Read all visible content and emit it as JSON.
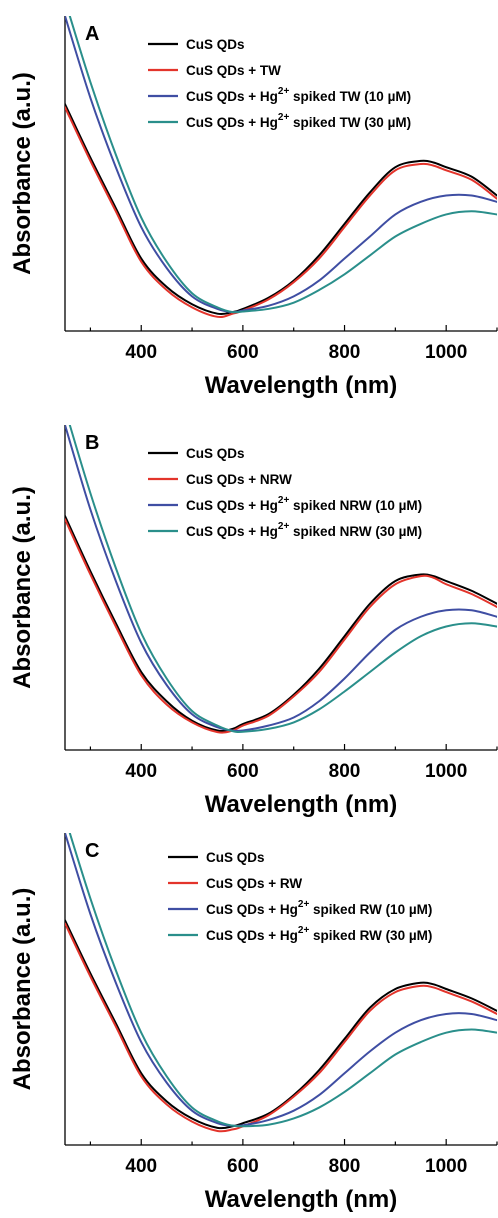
{
  "colors": {
    "black": "#000000",
    "red": "#e3342b",
    "blue": "#3f4ea3",
    "teal": "#2a8f8b"
  },
  "chart_data": [
    {
      "type": "line",
      "panel_label": "A",
      "xlabel": "Wavelength (nm)",
      "ylabel": "Absorbance (a.u.)",
      "xlim": [
        250,
        1100
      ],
      "ylim": [
        0,
        1
      ],
      "x_ticks": [
        400,
        600,
        800,
        1000
      ],
      "x_tick_labels": [
        "400",
        "600",
        "800",
        "1000"
      ],
      "y_ticks_labeled": false,
      "legend_placement": "top-center",
      "series": [
        {
          "name": "CuS QDs",
          "color": "#000000",
          "x": [
            250,
            300,
            350,
            400,
            450,
            500,
            550,
            580,
            600,
            650,
            700,
            750,
            800,
            850,
            900,
            950,
            975,
            1000,
            1050,
            1100
          ],
          "y": [
            0.72,
            0.55,
            0.39,
            0.23,
            0.14,
            0.085,
            0.055,
            0.06,
            0.07,
            0.105,
            0.16,
            0.24,
            0.34,
            0.44,
            0.52,
            0.54,
            0.535,
            0.52,
            0.49,
            0.43
          ]
        },
        {
          "name": "CuS QDs + TW",
          "color": "#e3342b",
          "x": [
            250,
            300,
            350,
            400,
            450,
            500,
            550,
            580,
            600,
            650,
            700,
            750,
            800,
            850,
            900,
            950,
            975,
            1000,
            1050,
            1100
          ],
          "y": [
            0.71,
            0.54,
            0.38,
            0.22,
            0.13,
            0.075,
            0.045,
            0.055,
            0.065,
            0.1,
            0.155,
            0.23,
            0.33,
            0.43,
            0.51,
            0.53,
            0.525,
            0.51,
            0.48,
            0.42
          ]
        },
        {
          "name": "CuS QDs + Hg2+ spiked TW (10 µM)",
          "color": "#3f4ea3",
          "x": [
            250,
            300,
            350,
            400,
            450,
            500,
            550,
            580,
            600,
            650,
            700,
            750,
            800,
            850,
            900,
            950,
            1000,
            1050,
            1100
          ],
          "y": [
            1.0,
            0.74,
            0.52,
            0.33,
            0.2,
            0.11,
            0.07,
            0.06,
            0.065,
            0.08,
            0.11,
            0.16,
            0.23,
            0.3,
            0.37,
            0.41,
            0.43,
            0.43,
            0.41
          ]
        },
        {
          "name": "CuS QDs + Hg2+ spiked TW (30 µM)",
          "color": "#2a8f8b",
          "x": [
            250,
            300,
            350,
            400,
            450,
            500,
            550,
            580,
            600,
            650,
            700,
            750,
            800,
            850,
            900,
            950,
            1000,
            1050,
            1100
          ],
          "y": [
            1.05,
            0.79,
            0.56,
            0.36,
            0.22,
            0.12,
            0.075,
            0.06,
            0.062,
            0.07,
            0.09,
            0.13,
            0.18,
            0.24,
            0.3,
            0.34,
            0.37,
            0.38,
            0.37
          ]
        }
      ],
      "legend": [
        {
          "pre": "CuS QDs",
          "sup": "",
          "post": "",
          "color": "#000000"
        },
        {
          "pre": "CuS QDs + TW",
          "sup": "",
          "post": "",
          "color": "#e3342b"
        },
        {
          "pre": "CuS QDs + Hg",
          "sup": "2+",
          "post": " spiked TW (10 µM)",
          "color": "#3f4ea3"
        },
        {
          "pre": "CuS QDs + Hg",
          "sup": "2+",
          "post": " spiked TW (30 µM)",
          "color": "#2a8f8b"
        }
      ]
    },
    {
      "type": "line",
      "panel_label": "B",
      "xlabel": "Wavelength (nm)",
      "ylabel": "Absorbance (a.u.)",
      "xlim": [
        250,
        1100
      ],
      "ylim": [
        0,
        1
      ],
      "x_ticks": [
        400,
        600,
        800,
        1000
      ],
      "x_tick_labels": [
        "400",
        "600",
        "800",
        "1000"
      ],
      "y_ticks_labeled": false,
      "legend_placement": "top-center",
      "series": [
        {
          "name": "CuS QDs",
          "color": "#000000",
          "x": [
            250,
            300,
            350,
            400,
            450,
            500,
            550,
            580,
            600,
            650,
            700,
            750,
            800,
            850,
            900,
            950,
            975,
            1000,
            1050,
            1100
          ],
          "y": [
            0.72,
            0.55,
            0.39,
            0.24,
            0.15,
            0.09,
            0.06,
            0.065,
            0.08,
            0.11,
            0.17,
            0.25,
            0.35,
            0.45,
            0.52,
            0.54,
            0.535,
            0.52,
            0.49,
            0.45
          ]
        },
        {
          "name": "CuS QDs + NRW",
          "color": "#e3342b",
          "x": [
            250,
            300,
            350,
            400,
            450,
            500,
            550,
            580,
            600,
            650,
            700,
            750,
            800,
            850,
            900,
            950,
            975,
            1000,
            1050,
            1100
          ],
          "y": [
            0.71,
            0.54,
            0.38,
            0.23,
            0.14,
            0.085,
            0.055,
            0.06,
            0.075,
            0.105,
            0.165,
            0.24,
            0.34,
            0.44,
            0.51,
            0.535,
            0.53,
            0.51,
            0.48,
            0.44
          ]
        },
        {
          "name": "CuS QDs + Hg2+ spiked NRW (10 µM)",
          "color": "#3f4ea3",
          "x": [
            250,
            300,
            350,
            400,
            450,
            500,
            550,
            580,
            600,
            650,
            700,
            750,
            800,
            850,
            900,
            950,
            1000,
            1050,
            1100
          ],
          "y": [
            1.0,
            0.74,
            0.52,
            0.33,
            0.2,
            0.11,
            0.07,
            0.06,
            0.06,
            0.075,
            0.1,
            0.15,
            0.22,
            0.3,
            0.37,
            0.41,
            0.43,
            0.43,
            0.41
          ]
        },
        {
          "name": "CuS QDs + Hg2+ spiked NRW (30 µM)",
          "color": "#2a8f8b",
          "x": [
            250,
            300,
            350,
            400,
            450,
            500,
            550,
            580,
            600,
            650,
            700,
            750,
            800,
            850,
            900,
            950,
            1000,
            1050,
            1100
          ],
          "y": [
            1.05,
            0.79,
            0.56,
            0.36,
            0.22,
            0.12,
            0.075,
            0.058,
            0.056,
            0.065,
            0.085,
            0.125,
            0.18,
            0.24,
            0.3,
            0.35,
            0.38,
            0.39,
            0.38
          ]
        }
      ],
      "legend": [
        {
          "pre": "CuS QDs",
          "sup": "",
          "post": "",
          "color": "#000000"
        },
        {
          "pre": "CuS QDs + NRW",
          "sup": "",
          "post": "",
          "color": "#e3342b"
        },
        {
          "pre": "CuS QDs + Hg",
          "sup": "2+",
          "post": " spiked NRW (10 µM)",
          "color": "#3f4ea3"
        },
        {
          "pre": "CuS QDs + Hg",
          "sup": "2+",
          "post": " spiked NRW (30 µM)",
          "color": "#2a8f8b"
        }
      ]
    },
    {
      "type": "line",
      "panel_label": "C",
      "xlabel": "Wavelength (nm)",
      "ylabel": "Absorbance (a.u.)",
      "xlim": [
        250,
        1100
      ],
      "ylim": [
        0,
        1
      ],
      "x_ticks": [
        400,
        600,
        800,
        1000
      ],
      "x_tick_labels": [
        "400",
        "600",
        "800",
        "1000"
      ],
      "y_ticks_labeled": false,
      "legend_placement": "top-center",
      "series": [
        {
          "name": "CuS QDs",
          "color": "#000000",
          "x": [
            250,
            300,
            350,
            400,
            450,
            500,
            550,
            580,
            600,
            650,
            700,
            750,
            800,
            850,
            900,
            950,
            975,
            1000,
            1050,
            1100
          ],
          "y": [
            0.72,
            0.55,
            0.39,
            0.23,
            0.14,
            0.085,
            0.055,
            0.06,
            0.07,
            0.1,
            0.16,
            0.24,
            0.34,
            0.44,
            0.5,
            0.52,
            0.515,
            0.5,
            0.47,
            0.43
          ]
        },
        {
          "name": "CuS QDs + RW",
          "color": "#e3342b",
          "x": [
            250,
            300,
            350,
            400,
            450,
            500,
            550,
            580,
            600,
            650,
            700,
            750,
            800,
            850,
            900,
            950,
            975,
            1000,
            1050,
            1100
          ],
          "y": [
            0.71,
            0.54,
            0.38,
            0.22,
            0.13,
            0.075,
            0.045,
            0.05,
            0.06,
            0.095,
            0.155,
            0.23,
            0.33,
            0.43,
            0.49,
            0.51,
            0.505,
            0.49,
            0.46,
            0.42
          ]
        },
        {
          "name": "CuS QDs + Hg2+ spiked RW (10 µM)",
          "color": "#3f4ea3",
          "x": [
            250,
            300,
            350,
            400,
            450,
            500,
            550,
            580,
            600,
            650,
            700,
            750,
            800,
            850,
            900,
            950,
            1000,
            1050,
            1100
          ],
          "y": [
            1.0,
            0.74,
            0.52,
            0.33,
            0.2,
            0.11,
            0.07,
            0.062,
            0.063,
            0.08,
            0.11,
            0.16,
            0.23,
            0.3,
            0.36,
            0.4,
            0.42,
            0.42,
            0.4
          ]
        },
        {
          "name": "CuS QDs + Hg2+ spiked RW (30 µM)",
          "color": "#2a8f8b",
          "x": [
            250,
            300,
            350,
            400,
            450,
            500,
            550,
            580,
            600,
            650,
            700,
            750,
            800,
            850,
            900,
            950,
            1000,
            1050,
            1100
          ],
          "y": [
            1.05,
            0.79,
            0.56,
            0.36,
            0.22,
            0.12,
            0.076,
            0.062,
            0.06,
            0.065,
            0.085,
            0.12,
            0.17,
            0.23,
            0.29,
            0.33,
            0.36,
            0.37,
            0.36
          ]
        }
      ],
      "legend": [
        {
          "pre": "CuS QDs",
          "sup": "",
          "post": "",
          "color": "#000000"
        },
        {
          "pre": "CuS QDs + RW",
          "sup": "",
          "post": "",
          "color": "#e3342b"
        },
        {
          "pre": "CuS QDs + Hg",
          "sup": "2+",
          "post": " spiked RW (10 µM)",
          "color": "#3f4ea3"
        },
        {
          "pre": "CuS QDs + Hg",
          "sup": "2+",
          "post": " spiked RW (30 µM)",
          "color": "#2a8f8b"
        }
      ]
    }
  ]
}
